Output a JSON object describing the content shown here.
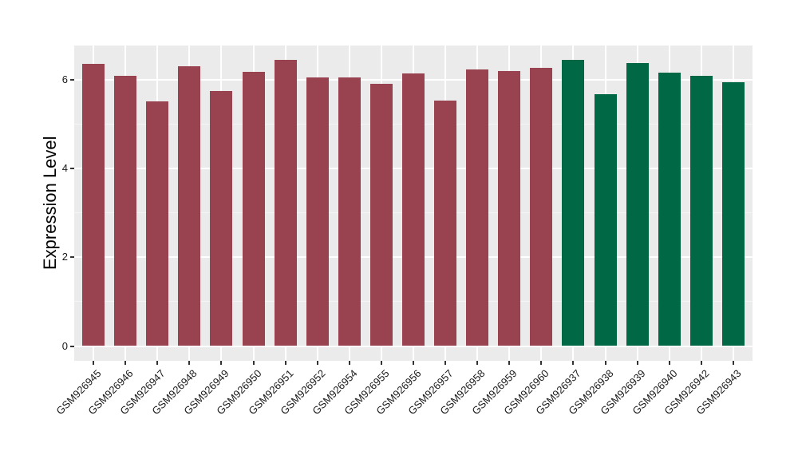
{
  "figure": {
    "background": "#FFFFFF",
    "panel_background": "#EBEBEB",
    "major_grid_color": "#FFFFFF",
    "minor_grid_color": "#F5F5F5",
    "tick_mark_color": "#333333",
    "axis_text_color": "#1A1A1A"
  },
  "chart_data": {
    "type": "bar",
    "title": "",
    "xlabel": "",
    "ylabel": "Expression Level",
    "ylim": [
      0,
      6.75
    ],
    "yticks": [
      0,
      2,
      4,
      6
    ],
    "yticks_minor": [
      1,
      3,
      5
    ],
    "grid": true,
    "legend_position": "none",
    "x_tick_label_rotation_deg": 45,
    "categories": [
      "GSM926945",
      "GSM926946",
      "GSM926947",
      "GSM926948",
      "GSM926949",
      "GSM926950",
      "GSM926951",
      "GSM926952",
      "GSM926954",
      "GSM926955",
      "GSM926956",
      "GSM926957",
      "GSM926958",
      "GSM926959",
      "GSM926960",
      "GSM926937",
      "GSM926938",
      "GSM926939",
      "GSM926940",
      "GSM926942",
      "GSM926943"
    ],
    "values": [
      6.36,
      6.08,
      5.51,
      6.3,
      5.75,
      6.18,
      6.45,
      6.05,
      6.05,
      5.91,
      6.14,
      5.53,
      6.23,
      6.2,
      6.26,
      6.44,
      5.67,
      6.38,
      6.16,
      6.09,
      5.94
    ],
    "bar_colors": [
      "#9A4350",
      "#9A4350",
      "#9A4350",
      "#9A4350",
      "#9A4350",
      "#9A4350",
      "#9A4350",
      "#9A4350",
      "#9A4350",
      "#9A4350",
      "#9A4350",
      "#9A4350",
      "#9A4350",
      "#9A4350",
      "#9A4350",
      "#016846",
      "#016846",
      "#016846",
      "#016846",
      "#016846",
      "#016846"
    ]
  }
}
